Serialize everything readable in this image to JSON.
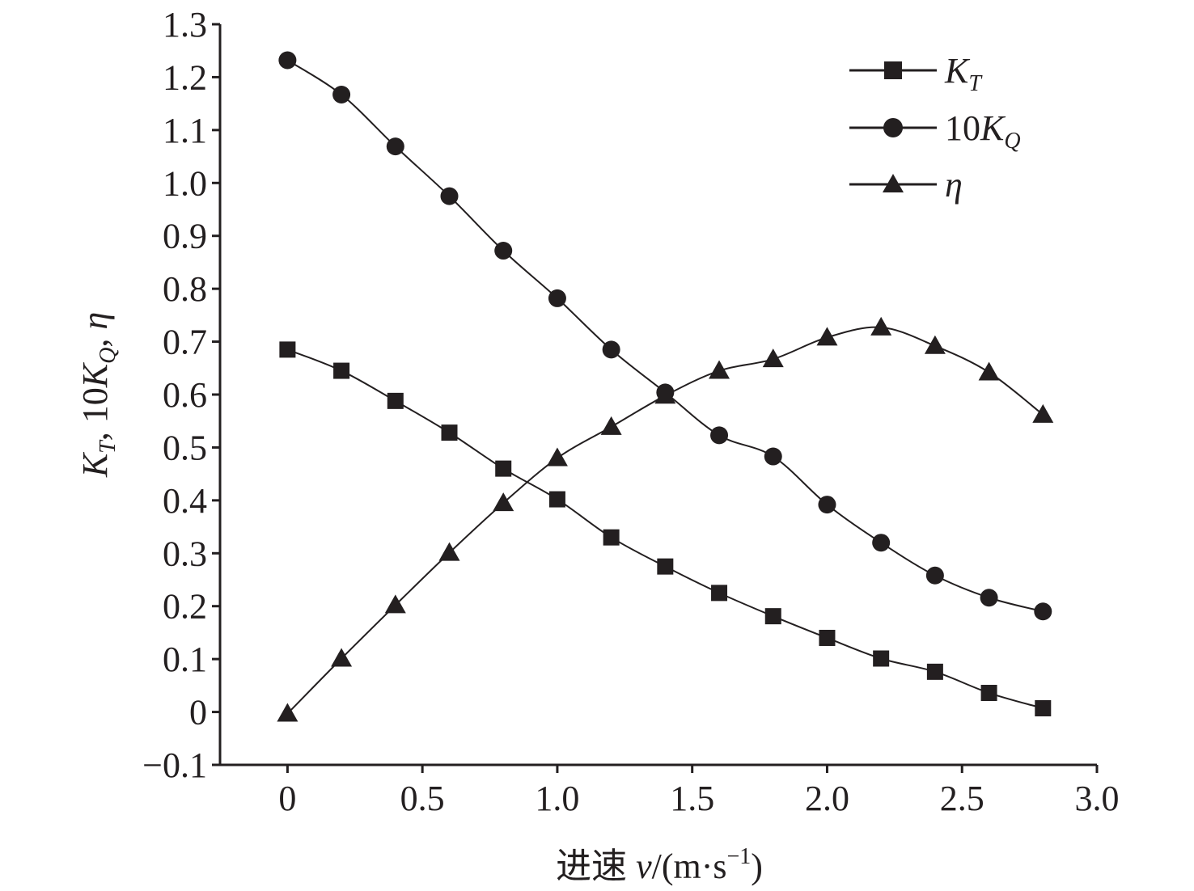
{
  "chart_data": {
    "type": "line",
    "xlabel": "进速 v/(m·s−1)",
    "xlabel_parts": {
      "prefix": "进速 ",
      "var": "v",
      "unit_open": "/(m·s",
      "exp": "−1",
      "unit_close": ")"
    },
    "ylabel": "KT, 10KQ, η",
    "ylabel_parts": {
      "k1": "K",
      "k1_sub": "T",
      "sep1": ", 10",
      "k2": "K",
      "k2_sub": "Q",
      "sep2": ", ",
      "eta": "η"
    },
    "xlim": [
      -0.25,
      3.0
    ],
    "ylim": [
      -0.1,
      1.3
    ],
    "x_ticks": [
      {
        "value": 0,
        "label": "0"
      },
      {
        "value": 0.5,
        "label": "0.5"
      },
      {
        "value": 1.0,
        "label": "1.0"
      },
      {
        "value": 1.5,
        "label": "1.5"
      },
      {
        "value": 2.0,
        "label": "2.0"
      },
      {
        "value": 2.5,
        "label": "2.5"
      },
      {
        "value": 3.0,
        "label": "3.0"
      }
    ],
    "y_ticks": [
      {
        "value": -0.1,
        "label": "−0.1"
      },
      {
        "value": 0,
        "label": "0"
      },
      {
        "value": 0.1,
        "label": "0.1"
      },
      {
        "value": 0.2,
        "label": "0.2"
      },
      {
        "value": 0.3,
        "label": "0.3"
      },
      {
        "value": 0.4,
        "label": "0.4"
      },
      {
        "value": 0.5,
        "label": "0.5"
      },
      {
        "value": 0.6,
        "label": "0.6"
      },
      {
        "value": 0.7,
        "label": "0.7"
      },
      {
        "value": 0.8,
        "label": "0.8"
      },
      {
        "value": 0.9,
        "label": "0.9"
      },
      {
        "value": 1.0,
        "label": "1.0"
      },
      {
        "value": 1.1,
        "label": "1.1"
      },
      {
        "value": 1.2,
        "label": "1.2"
      },
      {
        "value": 1.3,
        "label": "1.3"
      }
    ],
    "grid": false,
    "legend_position": "top-right",
    "x": [
      0,
      0.2,
      0.4,
      0.6,
      0.8,
      1.0,
      1.2,
      1.4,
      1.6,
      1.8,
      2.0,
      2.2,
      2.4,
      2.6,
      2.8
    ],
    "series": [
      {
        "id": "kt",
        "name": "KT",
        "legend_main": "K",
        "legend_sub": "T",
        "legend_prefix": "",
        "marker": "square",
        "values": [
          0.685,
          0.645,
          0.588,
          0.528,
          0.46,
          0.402,
          0.33,
          0.275,
          0.225,
          0.181,
          0.14,
          0.101,
          0.076,
          0.036,
          0.007
        ]
      },
      {
        "id": "kq",
        "name": "10KQ",
        "legend_main": "K",
        "legend_sub": "Q",
        "legend_prefix": "10",
        "marker": "circle",
        "values": [
          1.232,
          1.167,
          1.069,
          0.975,
          0.872,
          0.782,
          0.685,
          0.604,
          0.523,
          0.483,
          0.392,
          0.32,
          0.258,
          0.216,
          0.19
        ]
      },
      {
        "id": "eta",
        "name": "η",
        "legend_main": "η",
        "legend_sub": "",
        "legend_prefix": "",
        "marker": "triangle",
        "values": [
          -0.003,
          0.101,
          0.202,
          0.301,
          0.395,
          0.48,
          0.539,
          0.598,
          0.645,
          0.667,
          0.708,
          0.727,
          0.692,
          0.642,
          0.562
        ]
      }
    ],
    "colors": {
      "ink": "#231f20",
      "background": "#ffffff"
    }
  }
}
